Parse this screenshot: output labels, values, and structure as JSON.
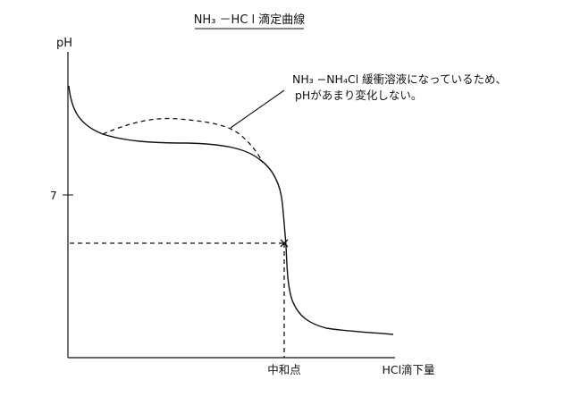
{
  "title": {
    "text": "NH₃ －HC l 滴定曲線"
  },
  "axes": {
    "y_label": "pH",
    "y_tick_label": "7",
    "x_label": "HCl滴下量",
    "x_point_label": "中和点"
  },
  "annotation": {
    "line1": "NH₃ −NH₄Cl 緩衝溶液になっているため、",
    "line2": "pHがあまり変化しない。"
  },
  "colors": {
    "ink": "#111111",
    "background": "#ffffff"
  }
}
